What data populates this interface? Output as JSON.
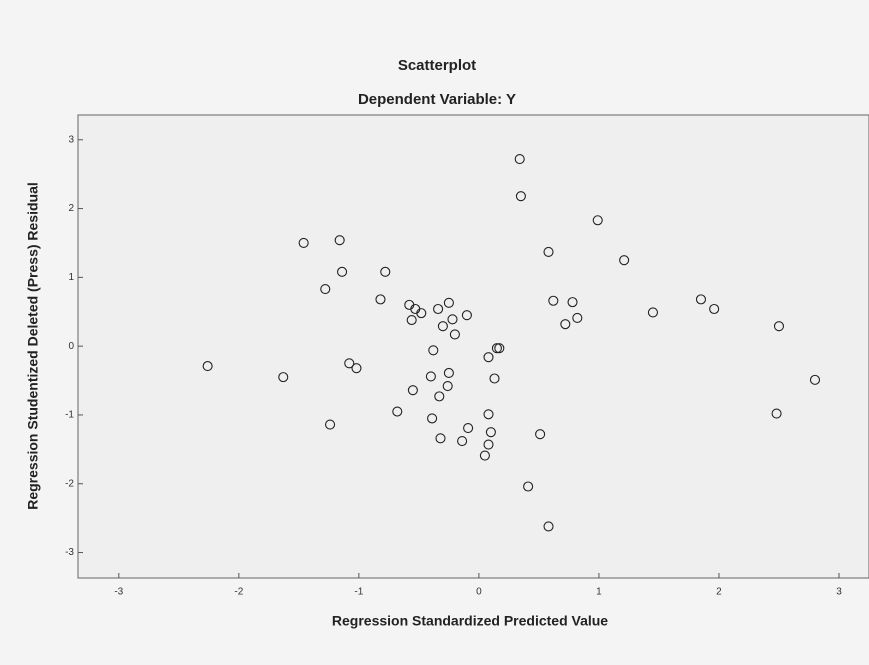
{
  "chart_data": {
    "type": "scatter",
    "title": "Scatterplot",
    "subtitle": "Dependent Variable: Y",
    "x_label": "Regression Standardized Predicted Value",
    "y_label": "Regression Studentized Deleted (Press) Residual",
    "xlim": [
      -3.34,
      3.25
    ],
    "ylim": [
      -3.37,
      3.36
    ],
    "xticks": [
      -3,
      -2,
      -1,
      0,
      1,
      2,
      3
    ],
    "yticks": [
      -3,
      -2,
      -1,
      0,
      1,
      2,
      3
    ],
    "color": "#222222",
    "x": [
      0.34,
      0.35,
      0.99,
      -1.46,
      -1.16,
      0.58,
      1.21,
      -1.14,
      -0.78,
      -1.28,
      -0.82,
      0.62,
      1.85,
      0.78,
      -0.58,
      -0.25,
      -0.53,
      -0.34,
      -0.48,
      1.45,
      1.96,
      -0.56,
      -0.22,
      -0.1,
      0.82,
      0.72,
      -0.3,
      -0.2,
      2.5,
      -0.38,
      0.15,
      0.17,
      0.08,
      -2.26,
      -1.08,
      -1.02,
      -1.63,
      -0.4,
      -0.25,
      0.13,
      -0.55,
      -0.26,
      2.8,
      -0.33,
      -0.68,
      -0.39,
      0.08,
      2.48,
      -1.24,
      -0.09,
      0.1,
      0.51,
      -0.32,
      -0.14,
      0.08,
      0.05,
      0.41,
      0.58
    ],
    "values": [
      2.72,
      2.18,
      1.83,
      1.5,
      1.54,
      1.37,
      1.25,
      1.08,
      1.08,
      0.83,
      0.68,
      0.66,
      0.68,
      0.64,
      0.6,
      0.63,
      0.54,
      0.54,
      0.48,
      0.49,
      0.54,
      0.38,
      0.39,
      0.45,
      0.41,
      0.32,
      0.29,
      0.17,
      0.29,
      -0.06,
      -0.03,
      -0.03,
      -0.16,
      -0.29,
      -0.25,
      -0.32,
      -0.45,
      -0.44,
      -0.39,
      -0.47,
      -0.64,
      -0.58,
      -0.49,
      -0.73,
      -0.95,
      -1.05,
      -0.99,
      -0.98,
      -1.14,
      -1.19,
      -1.25,
      -1.28,
      -1.34,
      -1.38,
      -1.43,
      -1.59,
      -2.04,
      -2.62
    ]
  }
}
